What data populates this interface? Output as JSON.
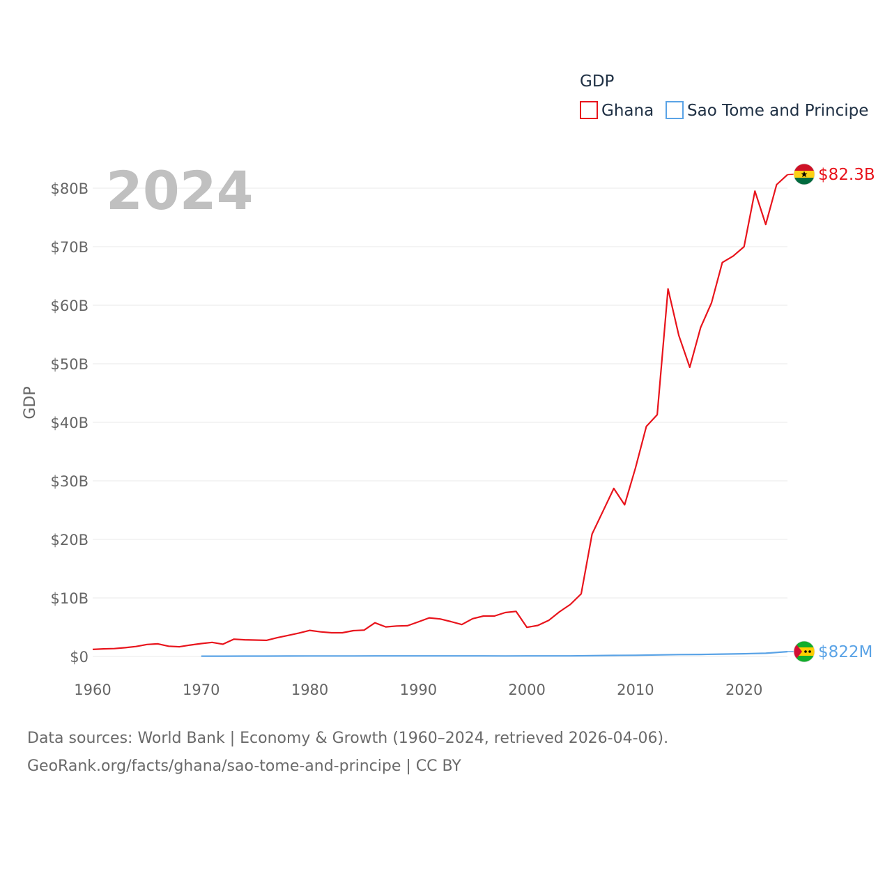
{
  "chart_data": {
    "type": "line",
    "title": "2024",
    "ylabel": "GDP",
    "xlabel": "",
    "xlim": [
      1960,
      2024
    ],
    "ylim": [
      0,
      80000000000
    ],
    "x_ticks": [
      1960,
      1970,
      1980,
      1990,
      2000,
      2010,
      2020
    ],
    "y_ticks": [
      {
        "value": 0,
        "label": "$0"
      },
      {
        "value": 10000000000,
        "label": "$10B"
      },
      {
        "value": 20000000000,
        "label": "$20B"
      },
      {
        "value": 30000000000,
        "label": "$30B"
      },
      {
        "value": 40000000000,
        "label": "$40B"
      },
      {
        "value": 50000000000,
        "label": "$50B"
      },
      {
        "value": 60000000000,
        "label": "$60B"
      },
      {
        "value": 70000000000,
        "label": "$70B"
      },
      {
        "value": 80000000000,
        "label": "$80B"
      }
    ],
    "grid": true,
    "legend": {
      "title": "GDP",
      "position": "top-right"
    },
    "series": [
      {
        "name": "Ghana",
        "color": "#e8141c",
        "end_label": "$82.3B",
        "flag_icon": "ghana-flag-icon",
        "x": [
          1960,
          1961,
          1962,
          1963,
          1964,
          1965,
          1966,
          1967,
          1968,
          1969,
          1970,
          1971,
          1972,
          1973,
          1974,
          1975,
          1976,
          1977,
          1978,
          1979,
          1980,
          1981,
          1982,
          1983,
          1984,
          1985,
          1986,
          1987,
          1988,
          1989,
          1990,
          1991,
          1992,
          1993,
          1994,
          1995,
          1996,
          1997,
          1998,
          1999,
          2000,
          2001,
          2002,
          2003,
          2004,
          2005,
          2006,
          2007,
          2008,
          2009,
          2010,
          2011,
          2012,
          2013,
          2014,
          2015,
          2016,
          2017,
          2018,
          2019,
          2020,
          2021,
          2022,
          2023,
          2024
        ],
        "values": [
          1200000000.0,
          1300000000.0,
          1350000000.0,
          1500000000.0,
          1700000000.0,
          2050000000.0,
          2150000000.0,
          1750000000.0,
          1650000000.0,
          1950000000.0,
          2200000000.0,
          2400000000.0,
          2100000000.0,
          2950000000.0,
          2850000000.0,
          2800000000.0,
          2750000000.0,
          3200000000.0,
          3600000000.0,
          4000000000.0,
          4450000000.0,
          4200000000.0,
          4050000000.0,
          4050000000.0,
          4400000000.0,
          4500000000.0,
          5750000000.0,
          5050000000.0,
          5200000000.0,
          5250000000.0,
          5900000000.0,
          6600000000.0,
          6400000000.0,
          5950000000.0,
          5450000000.0,
          6450000000.0,
          6900000000.0,
          6900000000.0,
          7500000000.0,
          7700000000.0,
          4980000000.0,
          5300000000.0,
          6150000000.0,
          7630000000.0,
          8880000000.0,
          10700000000.0,
          20900000000.0,
          24800000000.0,
          28700000000.0,
          25900000000.0,
          32200000000.0,
          39300000000.0,
          41300000000.0,
          62800000000.0,
          54800000000.0,
          49400000000.0,
          56200000000.0,
          60400000000.0,
          67300000000.0,
          68400000000.0,
          70000000000.0,
          79500000000.0,
          73800000000.0,
          80600000000.0,
          82300000000.0
        ]
      },
      {
        "name": "Sao Tome and Principe",
        "color": "#5aa3e6",
        "end_label": "$822M",
        "flag_icon": "sao-tome-flag-icon",
        "x": [
          1970,
          1972,
          1974,
          1976,
          1978,
          1980,
          1982,
          1984,
          1986,
          1988,
          1990,
          1992,
          1994,
          1996,
          1998,
          2000,
          2002,
          2004,
          2006,
          2008,
          2010,
          2012,
          2014,
          2016,
          2018,
          2020,
          2022,
          2024
        ],
        "values": [
          50000000.0,
          50000000.0,
          60000000.0,
          60000000.0,
          70000000.0,
          80000000.0,
          80000000.0,
          80000000.0,
          100000000.0,
          90000000.0,
          100000000.0,
          100000000.0,
          100000000.0,
          100000000.0,
          80000000.0,
          90000000.0,
          90000000.0,
          100000000.0,
          130000000.0,
          180000000.0,
          200000000.0,
          260000000.0,
          320000000.0,
          340000000.0,
          410000000.0,
          470000000.0,
          550000000.0,
          822000000.0
        ]
      }
    ]
  },
  "footer": {
    "line1": "Data sources: World Bank | Economy & Growth (1960–2024, retrieved 2026-04-06).",
    "line2": "GeoRank.org/facts/ghana/sao-tome-and-principe | CC BY"
  }
}
